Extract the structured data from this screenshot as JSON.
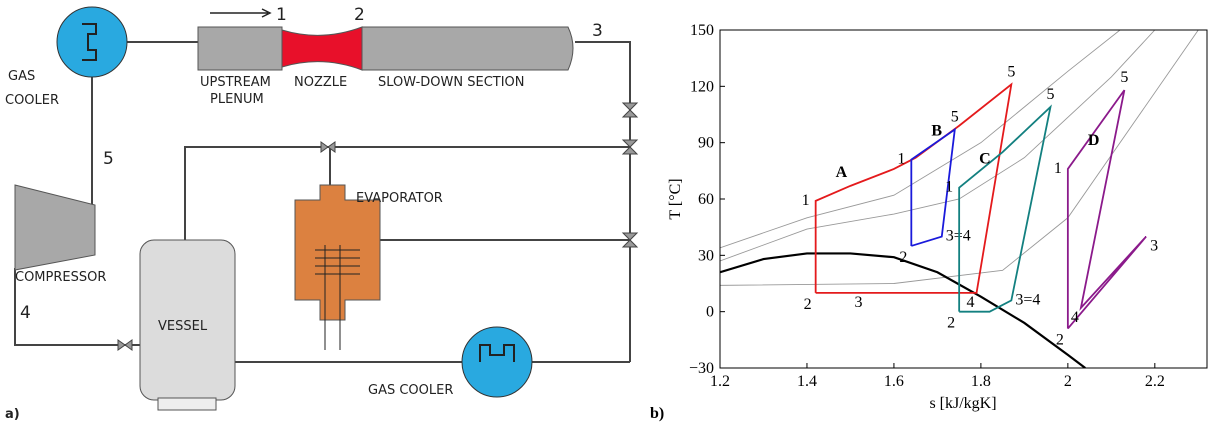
{
  "diagram": {
    "panel_label": "a)",
    "top_cooler": [
      "GAS",
      "COOLER"
    ],
    "plenum": [
      "UPSTREAM",
      "PLENUM"
    ],
    "nozzle": "NOZZLE",
    "slowdown": "SLOW-DOWN SECTION",
    "evaporator": "EVAPORATOR",
    "compressor": "COMPRESSOR",
    "vessel": "VESSEL",
    "bottom_cooler": "GAS COOLER",
    "points": [
      "1",
      "2",
      "3",
      "4",
      "5"
    ]
  },
  "chart_data": {
    "type": "line",
    "panel_label": "b)",
    "xlabel": "s [kJ/kgK]",
    "ylabel": "T [°C]",
    "xlim": [
      1.2,
      2.32
    ],
    "xticks": [
      1.2,
      1.4,
      1.6,
      1.8,
      2,
      2.2
    ],
    "ylim": [
      -30,
      150
    ],
    "yticks": [
      {
        "value": -30,
        "label": "−30"
      },
      0,
      30,
      60,
      90,
      120,
      150
    ],
    "series": [
      {
        "color": "#999999",
        "x": [
          1.2,
          1.4,
          1.6,
          1.8,
          2.0,
          2.12
        ],
        "values": [
          34,
          50,
          62,
          90,
          128,
          150
        ]
      },
      {
        "color": "#999999",
        "x": [
          1.2,
          1.4,
          1.6,
          1.75,
          1.9,
          2.1,
          2.2
        ],
        "values": [
          27,
          44,
          52,
          60,
          82,
          125,
          150
        ]
      },
      {
        "color": "#999999",
        "x": [
          1.2,
          1.6,
          1.85,
          2.0,
          2.15,
          2.3
        ],
        "values": [
          14,
          15,
          22,
          50,
          100,
          150
        ]
      },
      {
        "color": "#000000",
        "x": [
          1.2,
          1.3,
          1.4,
          1.5,
          1.6,
          1.7,
          1.8,
          1.9,
          2.0,
          2.04
        ],
        "values": [
          21,
          28,
          31,
          31,
          29,
          21,
          8,
          -6,
          -23,
          -30
        ]
      },
      {
        "name": "A",
        "color": "#e41a1c",
        "x": [
          1.42,
          1.42,
          1.5,
          1.6,
          1.65,
          1.75,
          1.87,
          1.79,
          1.5,
          1.42
        ],
        "values": [
          10,
          59,
          67,
          76,
          82,
          99,
          121,
          10,
          10,
          10
        ],
        "point_labels": [
          "2",
          "1",
          null,
          null,
          null,
          null,
          "5",
          "4",
          "3",
          null
        ]
      },
      {
        "name": "B",
        "color": "#1a1adb",
        "x": [
          1.64,
          1.64,
          1.74,
          1.71,
          1.64
        ],
        "values": [
          35,
          81,
          97,
          40,
          35
        ],
        "point_labels": [
          "2",
          "1",
          "5",
          "3=4",
          null
        ]
      },
      {
        "name": "C",
        "color": "#138080",
        "x": [
          1.75,
          1.75,
          1.85,
          1.96,
          1.87,
          1.82,
          1.75
        ],
        "values": [
          0,
          66,
          85,
          109,
          6,
          0,
          0
        ],
        "point_labels": [
          "2",
          "1",
          null,
          "5",
          "3=4",
          null,
          null
        ]
      },
      {
        "name": "D",
        "color": "#8b1a8b",
        "x": [
          2.0,
          2.0,
          2.13,
          2.03,
          2.18,
          2.0
        ],
        "values": [
          -9,
          76,
          118,
          2,
          40,
          -9
        ],
        "point_labels": [
          "2",
          "1",
          "5",
          "4",
          "3",
          null
        ]
      }
    ]
  }
}
